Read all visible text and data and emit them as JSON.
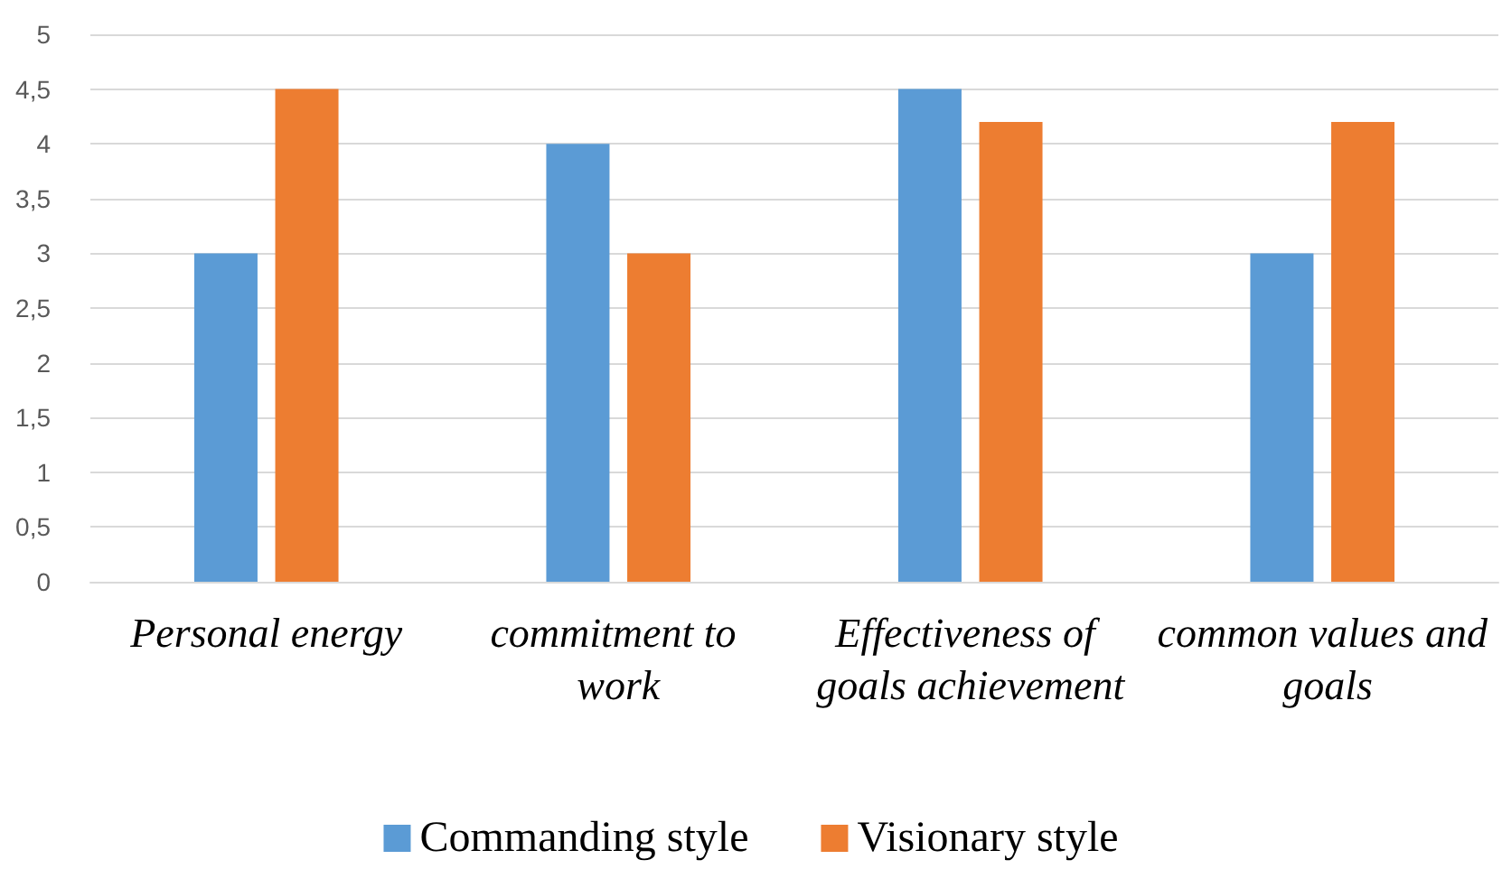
{
  "chart_data": {
    "type": "bar",
    "categories": [
      "Personal energy",
      "commitment to work",
      "Effectiveness of goals achievement",
      "common values and goals"
    ],
    "series": [
      {
        "name": "Commanding style",
        "color": "#5b9bd5",
        "values": [
          3,
          4,
          4.5,
          3
        ]
      },
      {
        "name": "Visionary style",
        "color": "#ed7d31",
        "values": [
          4.5,
          3,
          4.2,
          4.2
        ]
      }
    ],
    "ylim": [
      0,
      5
    ],
    "yticks": [
      0,
      {
        "value": 0.5,
        "label": "0,5"
      },
      1,
      {
        "value": 1.5,
        "label": "1,5"
      },
      2,
      {
        "value": 2.5,
        "label": "2,5"
      },
      3,
      {
        "value": 3.5,
        "label": "3,5"
      },
      4,
      {
        "value": 4.5,
        "label": "4,5"
      },
      5
    ],
    "grid": "y",
    "legend": "bottom"
  }
}
